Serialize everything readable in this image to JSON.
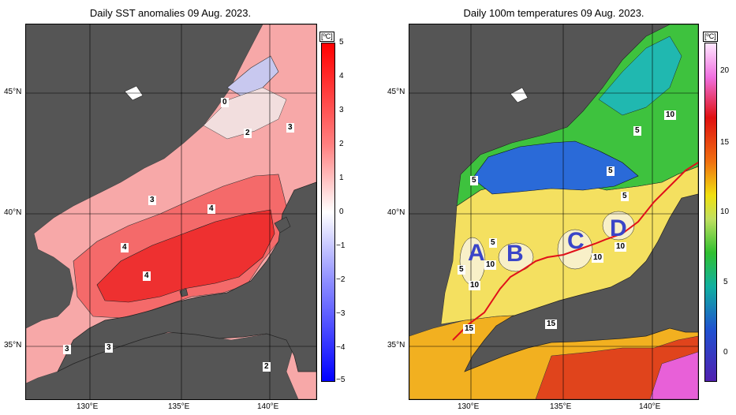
{
  "left_panel": {
    "title": "Daily SST anomalies 09 Aug. 2023.",
    "unit": "[ºC]",
    "colorbar_ticks": [
      "5",
      "4",
      "3",
      "2",
      "1",
      "0",
      "−1",
      "−2",
      "−3",
      "−4",
      "−5"
    ],
    "contour_labels": [
      "0",
      "2",
      "3",
      "3",
      "4",
      "4",
      "4",
      "3",
      "3",
      "2"
    ],
    "lat_labels": [
      "45°N",
      "40°N",
      "35°N"
    ],
    "lon_labels": [
      "130°E",
      "135°E",
      "140°E"
    ],
    "colors": {
      "max": "#ff0000",
      "min": "#0000ff",
      "land": "#555555"
    }
  },
  "right_panel": {
    "title": "Daily 100m temperatures 09 Aug. 2023.",
    "unit": "[ºC]",
    "colorbar_ticks": [
      "20",
      "15",
      "10",
      "5",
      "0"
    ],
    "contour_labels": [
      "10",
      "5",
      "5",
      "5",
      "5",
      "5",
      "10",
      "10",
      "5",
      "10",
      "15",
      "15",
      "10"
    ],
    "region_labels": [
      "A",
      "B",
      "C",
      "D"
    ],
    "lat_labels": [
      "45°N",
      "40°N",
      "35°N"
    ],
    "lon_labels": [
      "130°E",
      "135°E",
      "140°E"
    ],
    "colors": {
      "front_line": "#e0101a",
      "region_label": "#3a45c8",
      "land": "#555555"
    }
  }
}
